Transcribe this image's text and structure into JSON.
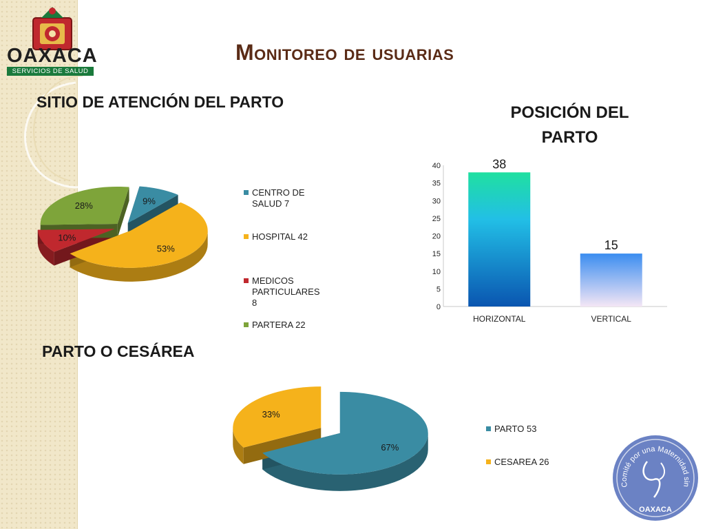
{
  "header": {
    "logo_text": "OAXACA",
    "logo_subtitle": "SERVICIOS DE SALUD",
    "title": "Monitoreo de usuarias"
  },
  "seal": {
    "text": "Comité por una Maternidad sin riesgos",
    "place": "OAXACA",
    "color": "#6b82c4"
  },
  "colors": {
    "teal": "#3a8ca3",
    "yellow": "#f5b21b",
    "red": "#c0282e",
    "green": "#7ea43a",
    "title_brown": "#5a2b16"
  },
  "chart_data": [
    {
      "type": "pie",
      "title": "SITIO DE ATENCIÓN DEL PARTO",
      "categories": [
        "CENTRO DE SALUD",
        "HOSPITAL",
        "MEDICOS PARTICULARES",
        "PARTERA"
      ],
      "values": [
        7,
        42,
        8,
        22
      ],
      "data_labels": [
        "9%",
        "53%",
        "10%",
        "28%"
      ],
      "legend_labels": [
        "CENTRO DE SALUD  7",
        "HOSPITAL  42",
        "MEDICOS PARTICULARES 8",
        "PARTERA  22"
      ],
      "colors": [
        "#3a8ca3",
        "#f5b21b",
        "#c0282e",
        "#7ea43a"
      ],
      "legend": "right"
    },
    {
      "type": "bar",
      "title": "POSICIÓN DEL PARTO",
      "categories": [
        "HORIZONTAL",
        "VERTICAL"
      ],
      "values": [
        38,
        15
      ],
      "data_labels": [
        "38",
        "15"
      ],
      "ylim": [
        0,
        40
      ],
      "yticks": [
        "0",
        "5",
        "10",
        "15",
        "20",
        "25",
        "30",
        "35",
        "40"
      ],
      "grid": false
    },
    {
      "type": "pie",
      "title": "PARTO O CESÁREA",
      "categories": [
        "PARTO",
        "CESAREA"
      ],
      "values": [
        53,
        26
      ],
      "data_labels": [
        "67%",
        "33%"
      ],
      "legend_labels": [
        "PARTO  53",
        "CESAREA  26"
      ],
      "colors": [
        "#3a8ca3",
        "#f5b21b"
      ],
      "legend": "right"
    }
  ]
}
